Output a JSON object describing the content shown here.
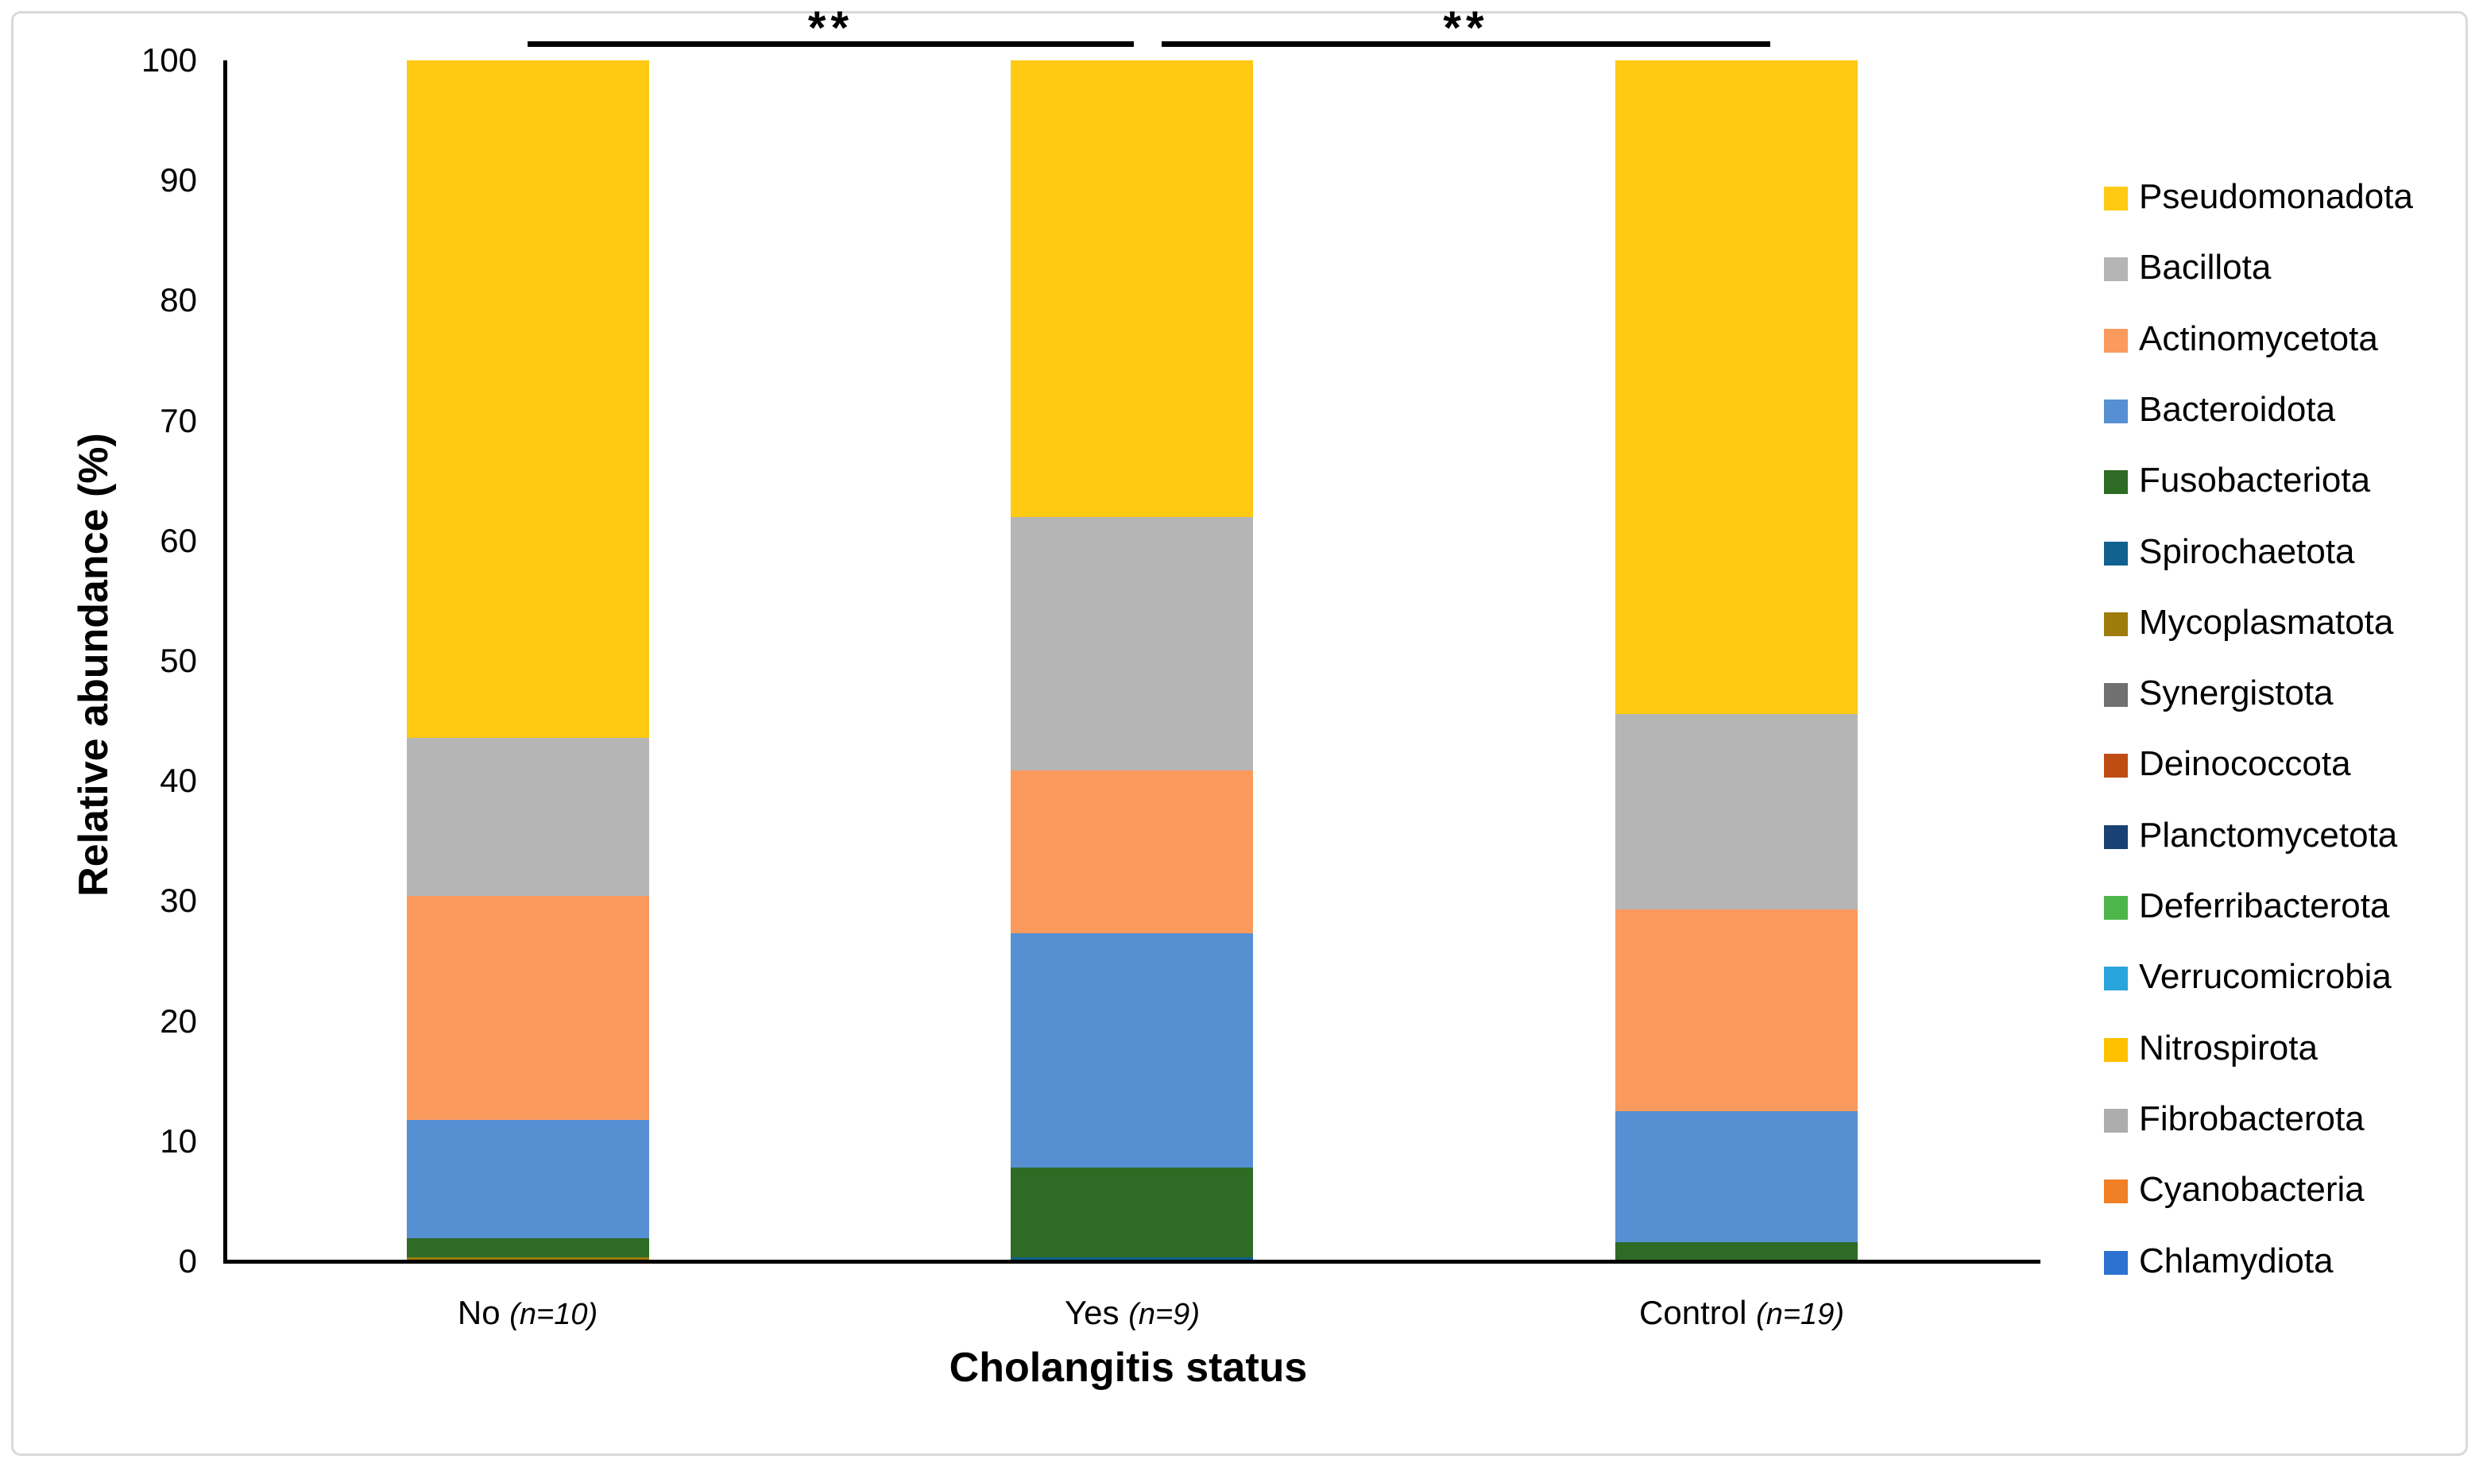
{
  "chart_data": {
    "type": "bar",
    "stacked": true,
    "title": "",
    "xlabel": "Cholangitis status",
    "ylabel": "Relative abundance (%)",
    "ylim": [
      0,
      100
    ],
    "yticks": [
      0,
      10,
      20,
      30,
      40,
      50,
      60,
      70,
      80,
      90,
      100
    ],
    "grid": false,
    "legend_position": "right",
    "categories": [
      {
        "label": "No",
        "n": "(n=10)"
      },
      {
        "label": "Yes",
        "n": "(n=9)"
      },
      {
        "label": "Control",
        "n": "(n=19)"
      }
    ],
    "series": [
      {
        "name": "Pseudomonadota",
        "color": "#FFC914",
        "values": [
          56.4,
          38.0,
          54.4
        ]
      },
      {
        "name": "Bacillota",
        "color": "#B5B5B5",
        "values": [
          13.2,
          21.1,
          16.3
        ]
      },
      {
        "name": "Actinomycetota",
        "color": "#FB9A5D",
        "values": [
          18.6,
          13.6,
          16.8
        ]
      },
      {
        "name": "Bacteroidota",
        "color": "#5690D3",
        "values": [
          9.9,
          19.5,
          10.9
        ]
      },
      {
        "name": "Fusobacteriota",
        "color": "#2E6B24",
        "values": [
          1.6,
          7.5,
          1.6
        ]
      },
      {
        "name": "Spirochaetota",
        "color": "#11618E",
        "values": [
          0,
          0.3,
          0
        ]
      },
      {
        "name": "Mycoplasmatota",
        "color": "#9E7C0C",
        "values": [
          0.3,
          0,
          0
        ]
      },
      {
        "name": "Synergistota",
        "color": "#707070",
        "values": [
          0,
          0,
          0
        ]
      },
      {
        "name": "Deinococcota",
        "color": "#BE4D14",
        "values": [
          0,
          0,
          0
        ]
      },
      {
        "name": "Planctomycetota",
        "color": "#1A4173",
        "values": [
          0,
          0,
          0
        ]
      },
      {
        "name": "Deferribacterota",
        "color": "#4EB54B",
        "values": [
          0,
          0,
          0
        ]
      },
      {
        "name": "Verrucomicrobia",
        "color": "#2AA4DC",
        "values": [
          0,
          0,
          0
        ]
      },
      {
        "name": "Nitrospirota",
        "color": "#FFC000",
        "values": [
          0,
          0,
          0
        ]
      },
      {
        "name": "Fibrobacterota",
        "color": "#ADADAD",
        "values": [
          0,
          0,
          0
        ]
      },
      {
        "name": "Cyanobacteria",
        "color": "#F07F26",
        "values": [
          0,
          0,
          0
        ]
      },
      {
        "name": "Chlamydiota",
        "color": "#2D72D0",
        "values": [
          0,
          0,
          0
        ]
      }
    ],
    "significance": [
      {
        "label": "**",
        "from": 0,
        "to": 1
      },
      {
        "label": "**",
        "from": 1,
        "to": 2
      }
    ]
  }
}
